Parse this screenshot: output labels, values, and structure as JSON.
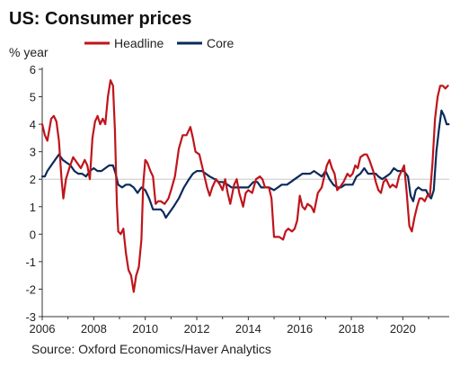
{
  "chart_data": {
    "type": "line",
    "title": "US: Consumer prices",
    "ylabel": "% year",
    "xlim": [
      2006,
      2021.8
    ],
    "ylim": [
      -3,
      6
    ],
    "yticks": [
      -3,
      -2,
      -1,
      0,
      1,
      2,
      3,
      4,
      5,
      6
    ],
    "xticks": [
      2006,
      2008,
      2010,
      2012,
      2014,
      2016,
      2018,
      2020
    ],
    "grid": "horizontal-at-2",
    "legend": "top",
    "colors": {
      "Headline": "#c0141b",
      "Core": "#0b2a5b"
    },
    "series": [
      {
        "name": "Headline",
        "points": [
          [
            2006.0,
            4.0
          ],
          [
            2006.1,
            3.6
          ],
          [
            2006.2,
            3.4
          ],
          [
            2006.35,
            4.2
          ],
          [
            2006.45,
            4.3
          ],
          [
            2006.55,
            4.1
          ],
          [
            2006.65,
            3.4
          ],
          [
            2006.75,
            2.0
          ],
          [
            2006.82,
            1.3
          ],
          [
            2006.92,
            2.0
          ],
          [
            2007.05,
            2.4
          ],
          [
            2007.2,
            2.8
          ],
          [
            2007.35,
            2.6
          ],
          [
            2007.5,
            2.4
          ],
          [
            2007.65,
            2.7
          ],
          [
            2007.75,
            2.5
          ],
          [
            2007.85,
            2.0
          ],
          [
            2007.95,
            3.5
          ],
          [
            2008.05,
            4.1
          ],
          [
            2008.15,
            4.3
          ],
          [
            2008.25,
            4.0
          ],
          [
            2008.35,
            4.2
          ],
          [
            2008.45,
            4.0
          ],
          [
            2008.55,
            5.0
          ],
          [
            2008.65,
            5.6
          ],
          [
            2008.75,
            5.4
          ],
          [
            2008.82,
            3.8
          ],
          [
            2008.9,
            1.1
          ],
          [
            2008.95,
            0.1
          ],
          [
            2009.05,
            0.0
          ],
          [
            2009.15,
            0.2
          ],
          [
            2009.25,
            -0.7
          ],
          [
            2009.35,
            -1.3
          ],
          [
            2009.45,
            -1.5
          ],
          [
            2009.55,
            -2.1
          ],
          [
            2009.65,
            -1.5
          ],
          [
            2009.75,
            -1.2
          ],
          [
            2009.85,
            -0.2
          ],
          [
            2009.92,
            1.8
          ],
          [
            2010.0,
            2.7
          ],
          [
            2010.08,
            2.6
          ],
          [
            2010.2,
            2.3
          ],
          [
            2010.3,
            2.1
          ],
          [
            2010.4,
            1.1
          ],
          [
            2010.5,
            1.2
          ],
          [
            2010.6,
            1.2
          ],
          [
            2010.75,
            1.1
          ],
          [
            2010.9,
            1.3
          ],
          [
            2011.0,
            1.6
          ],
          [
            2011.15,
            2.1
          ],
          [
            2011.3,
            3.1
          ],
          [
            2011.45,
            3.6
          ],
          [
            2011.6,
            3.6
          ],
          [
            2011.75,
            3.9
          ],
          [
            2011.85,
            3.5
          ],
          [
            2011.95,
            3.0
          ],
          [
            2012.1,
            2.9
          ],
          [
            2012.25,
            2.3
          ],
          [
            2012.4,
            1.7
          ],
          [
            2012.5,
            1.4
          ],
          [
            2012.6,
            1.7
          ],
          [
            2012.75,
            2.0
          ],
          [
            2012.9,
            1.8
          ],
          [
            2013.0,
            1.6
          ],
          [
            2013.1,
            2.0
          ],
          [
            2013.2,
            1.5
          ],
          [
            2013.3,
            1.1
          ],
          [
            2013.45,
            1.8
          ],
          [
            2013.55,
            2.0
          ],
          [
            2013.65,
            1.5
          ],
          [
            2013.8,
            1.0
          ],
          [
            2013.9,
            1.5
          ],
          [
            2014.0,
            1.6
          ],
          [
            2014.15,
            1.5
          ],
          [
            2014.3,
            2.0
          ],
          [
            2014.45,
            2.1
          ],
          [
            2014.55,
            2.0
          ],
          [
            2014.65,
            1.7
          ],
          [
            2014.8,
            1.7
          ],
          [
            2014.9,
            1.3
          ],
          [
            2015.0,
            -0.1
          ],
          [
            2015.1,
            -0.1
          ],
          [
            2015.2,
            -0.1
          ],
          [
            2015.35,
            -0.2
          ],
          [
            2015.45,
            0.1
          ],
          [
            2015.55,
            0.2
          ],
          [
            2015.7,
            0.1
          ],
          [
            2015.8,
            0.2
          ],
          [
            2015.9,
            0.5
          ],
          [
            2016.0,
            1.4
          ],
          [
            2016.1,
            1.0
          ],
          [
            2016.2,
            0.9
          ],
          [
            2016.3,
            1.1
          ],
          [
            2016.45,
            1.0
          ],
          [
            2016.55,
            0.8
          ],
          [
            2016.7,
            1.5
          ],
          [
            2016.85,
            1.7
          ],
          [
            2016.95,
            2.1
          ],
          [
            2017.05,
            2.5
          ],
          [
            2017.15,
            2.7
          ],
          [
            2017.25,
            2.4
          ],
          [
            2017.35,
            2.2
          ],
          [
            2017.45,
            1.6
          ],
          [
            2017.55,
            1.7
          ],
          [
            2017.7,
            1.9
          ],
          [
            2017.85,
            2.2
          ],
          [
            2017.95,
            2.1
          ],
          [
            2018.05,
            2.2
          ],
          [
            2018.15,
            2.5
          ],
          [
            2018.25,
            2.4
          ],
          [
            2018.35,
            2.8
          ],
          [
            2018.5,
            2.9
          ],
          [
            2018.6,
            2.9
          ],
          [
            2018.7,
            2.7
          ],
          [
            2018.85,
            2.3
          ],
          [
            2018.95,
            1.9
          ],
          [
            2019.05,
            1.6
          ],
          [
            2019.15,
            1.5
          ],
          [
            2019.25,
            1.9
          ],
          [
            2019.35,
            2.0
          ],
          [
            2019.5,
            1.7
          ],
          [
            2019.6,
            1.8
          ],
          [
            2019.75,
            1.7
          ],
          [
            2019.85,
            2.1
          ],
          [
            2019.95,
            2.3
          ],
          [
            2020.05,
            2.5
          ],
          [
            2020.15,
            1.5
          ],
          [
            2020.25,
            0.3
          ],
          [
            2020.35,
            0.1
          ],
          [
            2020.45,
            0.6
          ],
          [
            2020.55,
            1.0
          ],
          [
            2020.65,
            1.3
          ],
          [
            2020.75,
            1.3
          ],
          [
            2020.85,
            1.2
          ],
          [
            2020.95,
            1.4
          ],
          [
            2021.05,
            1.4
          ],
          [
            2021.15,
            2.6
          ],
          [
            2021.25,
            4.2
          ],
          [
            2021.35,
            5.0
          ],
          [
            2021.45,
            5.4
          ],
          [
            2021.55,
            5.4
          ],
          [
            2021.65,
            5.3
          ],
          [
            2021.75,
            5.4
          ]
        ]
      },
      {
        "name": "Core",
        "points": [
          [
            2006.0,
            2.1
          ],
          [
            2006.1,
            2.1
          ],
          [
            2006.2,
            2.3
          ],
          [
            2006.35,
            2.5
          ],
          [
            2006.5,
            2.7
          ],
          [
            2006.65,
            2.9
          ],
          [
            2006.8,
            2.7
          ],
          [
            2006.95,
            2.6
          ],
          [
            2007.1,
            2.5
          ],
          [
            2007.25,
            2.3
          ],
          [
            2007.4,
            2.2
          ],
          [
            2007.55,
            2.2
          ],
          [
            2007.7,
            2.1
          ],
          [
            2007.85,
            2.3
          ],
          [
            2008.0,
            2.4
          ],
          [
            2008.15,
            2.3
          ],
          [
            2008.3,
            2.3
          ],
          [
            2008.45,
            2.4
          ],
          [
            2008.6,
            2.5
          ],
          [
            2008.75,
            2.5
          ],
          [
            2008.85,
            2.2
          ],
          [
            2008.95,
            1.8
          ],
          [
            2009.1,
            1.7
          ],
          [
            2009.25,
            1.8
          ],
          [
            2009.4,
            1.8
          ],
          [
            2009.55,
            1.7
          ],
          [
            2009.7,
            1.5
          ],
          [
            2009.85,
            1.7
          ],
          [
            2010.0,
            1.6
          ],
          [
            2010.15,
            1.3
          ],
          [
            2010.3,
            0.9
          ],
          [
            2010.45,
            0.9
          ],
          [
            2010.6,
            0.9
          ],
          [
            2010.7,
            0.8
          ],
          [
            2010.8,
            0.6
          ],
          [
            2010.95,
            0.8
          ],
          [
            2011.1,
            1.0
          ],
          [
            2011.3,
            1.3
          ],
          [
            2011.5,
            1.7
          ],
          [
            2011.7,
            2.0
          ],
          [
            2011.85,
            2.2
          ],
          [
            2012.0,
            2.3
          ],
          [
            2012.2,
            2.3
          ],
          [
            2012.35,
            2.2
          ],
          [
            2012.5,
            2.1
          ],
          [
            2012.7,
            2.0
          ],
          [
            2012.85,
            1.9
          ],
          [
            2013.0,
            1.9
          ],
          [
            2013.2,
            1.8
          ],
          [
            2013.35,
            1.7
          ],
          [
            2013.5,
            1.7
          ],
          [
            2013.65,
            1.7
          ],
          [
            2013.8,
            1.7
          ],
          [
            2014.0,
            1.7
          ],
          [
            2014.2,
            1.9
          ],
          [
            2014.35,
            1.9
          ],
          [
            2014.5,
            1.7
          ],
          [
            2014.65,
            1.7
          ],
          [
            2014.8,
            1.7
          ],
          [
            2015.0,
            1.6
          ],
          [
            2015.15,
            1.7
          ],
          [
            2015.3,
            1.8
          ],
          [
            2015.5,
            1.8
          ],
          [
            2015.65,
            1.9
          ],
          [
            2015.8,
            2.0
          ],
          [
            2015.95,
            2.1
          ],
          [
            2016.1,
            2.2
          ],
          [
            2016.25,
            2.2
          ],
          [
            2016.4,
            2.2
          ],
          [
            2016.55,
            2.3
          ],
          [
            2016.7,
            2.2
          ],
          [
            2016.85,
            2.1
          ],
          [
            2017.0,
            2.3
          ],
          [
            2017.15,
            2.0
          ],
          [
            2017.3,
            1.8
          ],
          [
            2017.45,
            1.7
          ],
          [
            2017.6,
            1.7
          ],
          [
            2017.75,
            1.8
          ],
          [
            2017.9,
            1.8
          ],
          [
            2018.05,
            1.8
          ],
          [
            2018.2,
            2.1
          ],
          [
            2018.35,
            2.2
          ],
          [
            2018.5,
            2.4
          ],
          [
            2018.65,
            2.2
          ],
          [
            2018.8,
            2.2
          ],
          [
            2018.95,
            2.2
          ],
          [
            2019.05,
            2.1
          ],
          [
            2019.2,
            2.0
          ],
          [
            2019.35,
            2.1
          ],
          [
            2019.5,
            2.2
          ],
          [
            2019.65,
            2.4
          ],
          [
            2019.8,
            2.3
          ],
          [
            2019.95,
            2.3
          ],
          [
            2020.05,
            2.3
          ],
          [
            2020.2,
            2.1
          ],
          [
            2020.3,
            1.4
          ],
          [
            2020.4,
            1.2
          ],
          [
            2020.5,
            1.6
          ],
          [
            2020.6,
            1.7
          ],
          [
            2020.75,
            1.6
          ],
          [
            2020.9,
            1.6
          ],
          [
            2021.0,
            1.4
          ],
          [
            2021.1,
            1.3
          ],
          [
            2021.2,
            1.6
          ],
          [
            2021.3,
            3.0
          ],
          [
            2021.4,
            3.8
          ],
          [
            2021.5,
            4.5
          ],
          [
            2021.6,
            4.3
          ],
          [
            2021.7,
            4.0
          ],
          [
            2021.78,
            4.0
          ]
        ]
      }
    ]
  },
  "source": "Source: Oxford Economics/Haver Analytics"
}
